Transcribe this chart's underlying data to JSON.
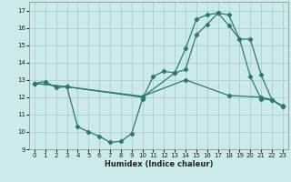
{
  "xlabel": "Humidex (Indice chaleur)",
  "bg_color": "#cdeaea",
  "grid_color": "#aacece",
  "line_color": "#2a7a6e",
  "xlim": [
    -0.5,
    23.5
  ],
  "ylim": [
    9,
    17.5
  ],
  "xticks": [
    0,
    1,
    2,
    3,
    4,
    5,
    6,
    7,
    8,
    9,
    10,
    11,
    12,
    13,
    14,
    15,
    16,
    17,
    18,
    19,
    20,
    21,
    22,
    23
  ],
  "yticks": [
    9,
    10,
    11,
    12,
    13,
    14,
    15,
    16,
    17
  ],
  "line1_x": [
    0,
    1,
    2,
    3,
    4,
    5,
    6,
    7,
    8,
    9,
    10,
    11,
    12,
    13,
    14,
    15,
    16,
    17,
    18,
    19,
    20,
    21,
    22,
    23
  ],
  "line1_y": [
    12.8,
    12.9,
    12.55,
    12.6,
    10.3,
    10.0,
    9.75,
    9.4,
    9.45,
    9.9,
    11.9,
    13.2,
    13.5,
    13.4,
    14.8,
    16.5,
    16.75,
    16.85,
    16.75,
    15.35,
    13.2,
    11.9,
    11.85,
    11.5
  ],
  "line2_x": [
    0,
    3,
    10,
    13,
    14,
    15,
    16,
    17,
    18,
    19,
    20,
    21,
    22,
    23
  ],
  "line2_y": [
    12.8,
    12.6,
    12.0,
    13.4,
    13.6,
    15.6,
    16.2,
    16.85,
    16.15,
    15.35,
    15.35,
    13.3,
    11.85,
    11.45
  ],
  "line3_x": [
    0,
    3,
    10,
    14,
    18,
    21,
    22,
    23
  ],
  "line3_y": [
    12.8,
    12.6,
    12.05,
    13.0,
    12.1,
    12.0,
    11.85,
    11.45
  ]
}
